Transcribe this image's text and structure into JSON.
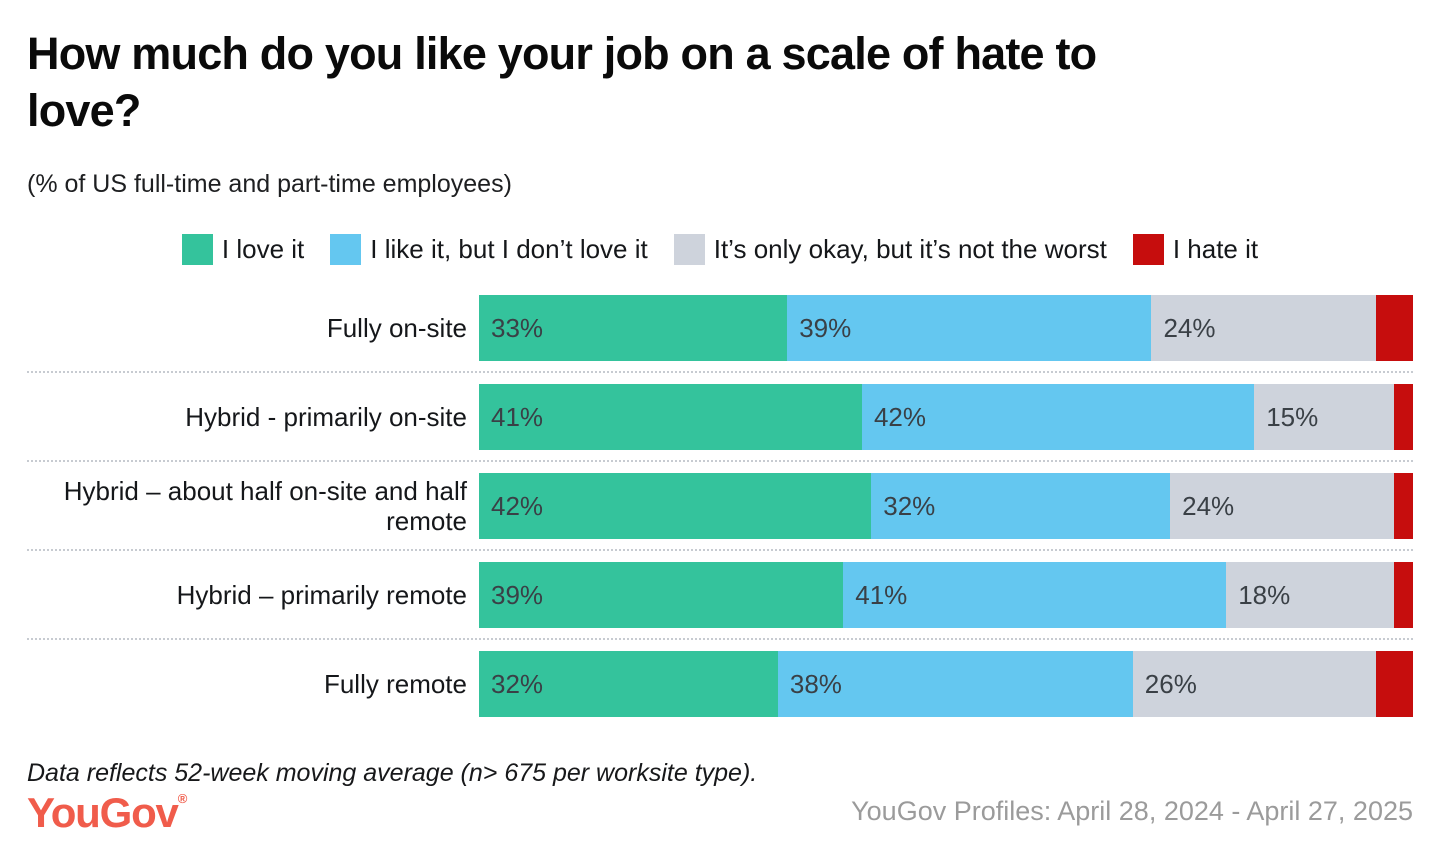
{
  "header": {
    "line1": "How much do you like your job on a scale of hate to",
    "line2": "love?",
    "subtitle": "(% of US full-time and part-time employees)"
  },
  "chart_data": {
    "type": "bar",
    "stacked": true,
    "orientation": "horizontal",
    "title": "How much do you like your job on a scale of hate to love?",
    "subtitle": "(% of US full-time and part-time employees)",
    "categories": [
      "Fully on-site",
      "Hybrid - primarily on-site",
      "Hybrid – about half on-site and half remote",
      "Hybrid – primarily remote",
      "Fully remote"
    ],
    "series": [
      {
        "key": "love",
        "name": "I love it",
        "color": "#34c39c",
        "show_value_labels": true,
        "values": [
          33,
          41,
          42,
          39,
          32
        ]
      },
      {
        "key": "like",
        "name": "I like it, but I don’t love it",
        "color": "#64c7f0",
        "show_value_labels": true,
        "values": [
          39,
          42,
          32,
          41,
          38
        ]
      },
      {
        "key": "okay",
        "name": "It’s only okay, but it’s not the worst",
        "color": "#ced3dc",
        "show_value_labels": true,
        "values": [
          24,
          15,
          24,
          18,
          26
        ]
      },
      {
        "key": "hate",
        "name": "I hate it",
        "color": "#c60d0d",
        "show_value_labels": false,
        "values": [
          4,
          2,
          2,
          2,
          4
        ]
      }
    ],
    "value_suffix": "%",
    "xlim": [
      0,
      100
    ],
    "grid": false,
    "legend_position": "top"
  },
  "footer": {
    "note": "Data reflects 52-week moving average (n> 675 per worksite type).",
    "logo_text": "YouGov",
    "logo_mark": "®",
    "source": "YouGov Profiles: April 28, 2024 - April 27, 2025",
    "logo_color": "#f05c4b"
  }
}
